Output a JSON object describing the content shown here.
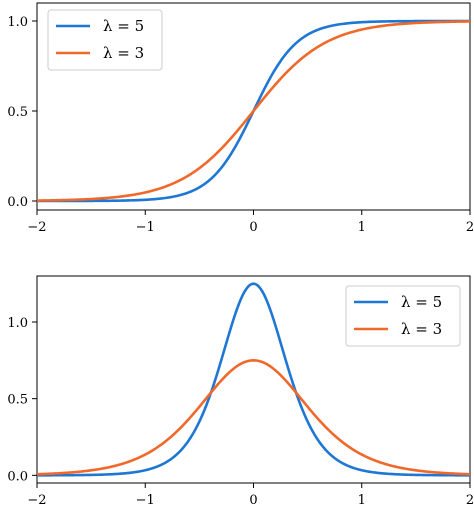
{
  "chart_data": [
    {
      "type": "line",
      "function": "sigmoid 1/(1+exp(-lambda*x))",
      "xlim": [
        -2,
        2
      ],
      "ylim": [
        -0.05,
        1.1
      ],
      "xticks": [
        "−2",
        "−1",
        "0",
        "1",
        "2"
      ],
      "yticks": [
        "0.0",
        "0.5",
        "1.0"
      ],
      "xlabel": "",
      "ylabel": "",
      "title": "",
      "legend_position": "top-left",
      "grid": false,
      "series": [
        {
          "name": "λ = 5",
          "lambda": 5,
          "color": "#1f77d4",
          "points": [
            [
              -2,
              0.0
            ],
            [
              -1.5,
              0.0006
            ],
            [
              -1,
              0.0067
            ],
            [
              -0.5,
              0.0759
            ],
            [
              0,
              0.5
            ],
            [
              0.5,
              0.9241
            ],
            [
              1,
              0.9933
            ],
            [
              1.5,
              0.9994
            ],
            [
              2,
              1.0
            ]
          ]
        },
        {
          "name": "λ = 3",
          "lambda": 3,
          "color": "#f0692b",
          "points": [
            [
              -2,
              0.0025
            ],
            [
              -1.5,
              0.011
            ],
            [
              -1,
              0.0474
            ],
            [
              -0.5,
              0.1824
            ],
            [
              0,
              0.5
            ],
            [
              0.5,
              0.8176
            ],
            [
              1,
              0.9526
            ],
            [
              1.5,
              0.989
            ],
            [
              2,
              0.9975
            ]
          ]
        }
      ]
    },
    {
      "type": "line",
      "function": "sigmoid derivative lambda*s*(1-s)",
      "xlim": [
        -2,
        2
      ],
      "ylim": [
        -0.05,
        1.3
      ],
      "xticks": [
        "−2",
        "−1",
        "0",
        "1",
        "2"
      ],
      "yticks": [
        "0.0",
        "0.5",
        "1.0"
      ],
      "xlabel": "",
      "ylabel": "",
      "title": "",
      "legend_position": "top-right",
      "grid": false,
      "series": [
        {
          "name": "λ = 5",
          "lambda": 5,
          "color": "#1f77d4",
          "points": [
            [
              -2,
              0.0002
            ],
            [
              -1.5,
              0.0028
            ],
            [
              -1,
              0.0332
            ],
            [
              -0.5,
              0.3505
            ],
            [
              0,
              1.25
            ],
            [
              0.5,
              0.3505
            ],
            [
              1,
              0.0332
            ],
            [
              1.5,
              0.0028
            ],
            [
              2,
              0.0002
            ]
          ]
        },
        {
          "name": "λ = 3",
          "lambda": 3,
          "color": "#f0692b",
          "points": [
            [
              -2,
              0.0074
            ],
            [
              -1.5,
              0.0327
            ],
            [
              -1,
              0.1355
            ],
            [
              -0.5,
              0.4474
            ],
            [
              0,
              0.75
            ],
            [
              0.5,
              0.4474
            ],
            [
              1,
              0.1355
            ],
            [
              1.5,
              0.0327
            ],
            [
              2,
              0.0074
            ]
          ]
        }
      ]
    }
  ]
}
